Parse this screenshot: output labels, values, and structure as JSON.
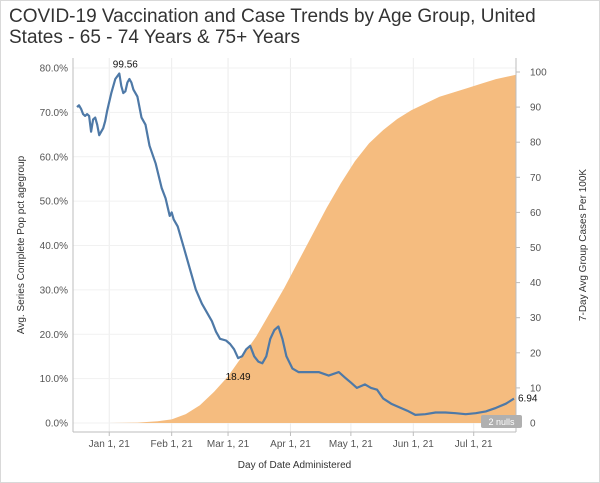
{
  "chart_data": {
    "type": "line-area-dual-axis",
    "title": "COVID-19 Vaccination and Case Trends by Age Group, United States - 65 - 74 Years & 75+ Years",
    "xlabel": "Day of Date Administered",
    "ylabel_left": "Avg. Series Complete Pop pct agegroup",
    "ylabel_right": "7-Day Avg Group Cases Per 100K",
    "x_range": [
      "2020-12-14",
      "2021-07-22"
    ],
    "x_ticks": [
      {
        "date": "2021-01-01",
        "label": "Jan 1, 21"
      },
      {
        "date": "2021-02-01",
        "label": "Feb 1, 21"
      },
      {
        "date": "2021-03-01",
        "label": "Mar 1, 21"
      },
      {
        "date": "2021-04-01",
        "label": "Apr 1, 21"
      },
      {
        "date": "2021-05-01",
        "label": "May 1, 21"
      },
      {
        "date": "2021-06-01",
        "label": "Jun 1, 21"
      },
      {
        "date": "2021-07-01",
        "label": "Jul 1, 21"
      }
    ],
    "ylim_left": [
      0,
      80
    ],
    "yticks_left": [
      "0.0%",
      "10.0%",
      "20.0%",
      "30.0%",
      "40.0%",
      "50.0%",
      "60.0%",
      "70.0%",
      "80.0%"
    ],
    "ylim_right": [
      0,
      100
    ],
    "yticks_right": [
      "0",
      "10",
      "20",
      "30",
      "40",
      "50",
      "60",
      "70",
      "80",
      "90",
      "100"
    ],
    "series": [
      {
        "name": "Avg. Series Complete Pop pct agegroup",
        "axis": "left",
        "kind": "area",
        "color": "#f5bc7f",
        "points": [
          [
            "2020-12-14",
            0
          ],
          [
            "2021-01-01",
            0
          ],
          [
            "2021-01-15",
            0.1
          ],
          [
            "2021-01-25",
            0.4
          ],
          [
            "2021-02-01",
            0.8
          ],
          [
            "2021-02-08",
            2
          ],
          [
            "2021-02-15",
            4
          ],
          [
            "2021-02-22",
            7
          ],
          [
            "2021-03-01",
            10.5
          ],
          [
            "2021-03-08",
            15
          ],
          [
            "2021-03-15",
            19.5
          ],
          [
            "2021-03-22",
            25
          ],
          [
            "2021-03-29",
            30.5
          ],
          [
            "2021-04-05",
            36.5
          ],
          [
            "2021-04-12",
            42.5
          ],
          [
            "2021-04-19",
            48.5
          ],
          [
            "2021-04-26",
            54
          ],
          [
            "2021-05-03",
            59
          ],
          [
            "2021-05-10",
            63
          ],
          [
            "2021-05-17",
            66
          ],
          [
            "2021-05-24",
            68.5
          ],
          [
            "2021-05-31",
            70.5
          ],
          [
            "2021-06-07",
            72
          ],
          [
            "2021-06-14",
            73.5
          ],
          [
            "2021-06-21",
            74.5
          ],
          [
            "2021-06-28",
            75.5
          ],
          [
            "2021-07-05",
            76.5
          ],
          [
            "2021-07-12",
            77.5
          ],
          [
            "2021-07-22",
            78.5
          ]
        ]
      },
      {
        "name": "7-Day Avg Group Cases Per 100K",
        "axis": "right",
        "kind": "line",
        "color": "#4e79a7",
        "points": [
          [
            "2020-12-16",
            90
          ],
          [
            "2020-12-17",
            90.5
          ],
          [
            "2020-12-18",
            89.5
          ],
          [
            "2020-12-19",
            88
          ],
          [
            "2020-12-20",
            87.5
          ],
          [
            "2020-12-21",
            88
          ],
          [
            "2020-12-22",
            87.5
          ],
          [
            "2020-12-23",
            83
          ],
          [
            "2020-12-24",
            86.5
          ],
          [
            "2020-12-25",
            87
          ],
          [
            "2020-12-26",
            85
          ],
          [
            "2020-12-27",
            82
          ],
          [
            "2020-12-28",
            83
          ],
          [
            "2020-12-29",
            84
          ],
          [
            "2020-12-30",
            86
          ],
          [
            "2020-12-31",
            89
          ],
          [
            "2021-01-02",
            94
          ],
          [
            "2021-01-04",
            98
          ],
          [
            "2021-01-06",
            99.56
          ],
          [
            "2021-01-07",
            96
          ],
          [
            "2021-01-08",
            94
          ],
          [
            "2021-01-09",
            94.5
          ],
          [
            "2021-01-10",
            97
          ],
          [
            "2021-01-11",
            98
          ],
          [
            "2021-01-12",
            97
          ],
          [
            "2021-01-13",
            95
          ],
          [
            "2021-01-15",
            93
          ],
          [
            "2021-01-17",
            87
          ],
          [
            "2021-01-19",
            85
          ],
          [
            "2021-01-21",
            79
          ],
          [
            "2021-01-24",
            74
          ],
          [
            "2021-01-27",
            67
          ],
          [
            "2021-01-29",
            64
          ],
          [
            "2021-01-31",
            59
          ],
          [
            "2021-02-01",
            60
          ],
          [
            "2021-02-02",
            58
          ],
          [
            "2021-02-04",
            56
          ],
          [
            "2021-02-07",
            50
          ],
          [
            "2021-02-10",
            44
          ],
          [
            "2021-02-13",
            38
          ],
          [
            "2021-02-16",
            34
          ],
          [
            "2021-02-19",
            31
          ],
          [
            "2021-02-21",
            29
          ],
          [
            "2021-02-23",
            26
          ],
          [
            "2021-02-25",
            24
          ],
          [
            "2021-02-28",
            23.5
          ],
          [
            "2021-03-02",
            22.5
          ],
          [
            "2021-03-04",
            21
          ],
          [
            "2021-03-06",
            18.49
          ],
          [
            "2021-03-08",
            19
          ],
          [
            "2021-03-10",
            21
          ],
          [
            "2021-03-12",
            22
          ],
          [
            "2021-03-14",
            19
          ],
          [
            "2021-03-16",
            17.5
          ],
          [
            "2021-03-18",
            17
          ],
          [
            "2021-03-20",
            19
          ],
          [
            "2021-03-22",
            24
          ],
          [
            "2021-03-24",
            26.5
          ],
          [
            "2021-03-26",
            27.5
          ],
          [
            "2021-03-28",
            24
          ],
          [
            "2021-03-30",
            19
          ],
          [
            "2021-04-02",
            15.5
          ],
          [
            "2021-04-05",
            14.5
          ],
          [
            "2021-04-10",
            14.5
          ],
          [
            "2021-04-15",
            14.5
          ],
          [
            "2021-04-20",
            13.5
          ],
          [
            "2021-04-25",
            14.5
          ],
          [
            "2021-04-28",
            13
          ],
          [
            "2021-05-01",
            11.5
          ],
          [
            "2021-05-04",
            10
          ],
          [
            "2021-05-08",
            11
          ],
          [
            "2021-05-11",
            10
          ],
          [
            "2021-05-14",
            9.5
          ],
          [
            "2021-05-17",
            7
          ],
          [
            "2021-05-21",
            5.5
          ],
          [
            "2021-05-25",
            4.5
          ],
          [
            "2021-05-29",
            3.5
          ],
          [
            "2021-06-02",
            2.3
          ],
          [
            "2021-06-07",
            2.5
          ],
          [
            "2021-06-12",
            3
          ],
          [
            "2021-06-17",
            3
          ],
          [
            "2021-06-22",
            2.8
          ],
          [
            "2021-06-27",
            2.5
          ],
          [
            "2021-07-02",
            2.8
          ],
          [
            "2021-07-07",
            3.3
          ],
          [
            "2021-07-12",
            4.3
          ],
          [
            "2021-07-17",
            5.5
          ],
          [
            "2021-07-21",
            6.94
          ]
        ]
      }
    ],
    "annotations": [
      {
        "label": "99.56",
        "date": "2021-01-06",
        "value": 99.56,
        "axis": "right",
        "position": "above"
      },
      {
        "label": "18.49",
        "date": "2021-03-06",
        "value": 18.49,
        "axis": "right",
        "position": "below"
      },
      {
        "label": "6.94",
        "date": "2021-07-21",
        "value": 6.94,
        "axis": "right",
        "position": "right"
      }
    ],
    "nulls_indicator": "2 nulls",
    "gridlines": "vertical-and-horizontal"
  }
}
